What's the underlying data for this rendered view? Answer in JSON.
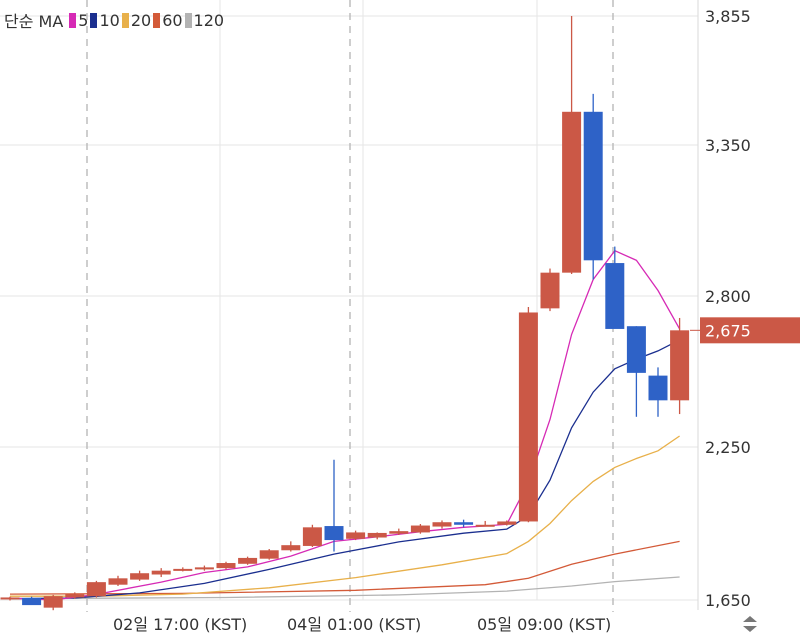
{
  "legend": {
    "label": "단순 MA",
    "items": [
      {
        "name": "5",
        "color": "#d62ab5"
      },
      {
        "name": "10",
        "color": "#1b2f8f"
      },
      {
        "name": "20",
        "color": "#e8b04a"
      },
      {
        "name": "60",
        "color": "#d35a38"
      },
      {
        "name": "120",
        "color": "#b3b3b3"
      }
    ]
  },
  "chart_data": {
    "type": "candlestick",
    "y_ticks": [
      "3,855",
      "3,350",
      "2,800",
      "2,250",
      "1,650"
    ],
    "x_ticks": [
      "02일 17:00 (KST)",
      "04일 01:00 (KST)",
      "05일 09:00 (KST)"
    ],
    "current_price_label": "2,675",
    "current_price": 2675,
    "ylim": [
      1650,
      3855
    ],
    "colors": {
      "up": "#cb5846",
      "down": "#2e62c7",
      "grid": "#e6e6e6",
      "price_tag": "#cb5846"
    },
    "candles": [
      {
        "o": 1658,
        "h": 1663,
        "l": 1648,
        "c": 1660
      },
      {
        "o": 1658,
        "h": 1663,
        "l": 1640,
        "c": 1630
      },
      {
        "o": 1620,
        "h": 1670,
        "l": 1610,
        "c": 1665
      },
      {
        "o": 1660,
        "h": 1680,
        "l": 1655,
        "c": 1672
      },
      {
        "o": 1665,
        "h": 1725,
        "l": 1660,
        "c": 1720
      },
      {
        "o": 1710,
        "h": 1745,
        "l": 1705,
        "c": 1735
      },
      {
        "o": 1730,
        "h": 1765,
        "l": 1725,
        "c": 1755
      },
      {
        "o": 1750,
        "h": 1775,
        "l": 1740,
        "c": 1765
      },
      {
        "o": 1765,
        "h": 1778,
        "l": 1762,
        "c": 1772
      },
      {
        "o": 1770,
        "h": 1785,
        "l": 1765,
        "c": 1778
      },
      {
        "o": 1775,
        "h": 1800,
        "l": 1770,
        "c": 1795
      },
      {
        "o": 1792,
        "h": 1820,
        "l": 1788,
        "c": 1815
      },
      {
        "o": 1812,
        "h": 1850,
        "l": 1808,
        "c": 1845
      },
      {
        "o": 1845,
        "h": 1880,
        "l": 1840,
        "c": 1865
      },
      {
        "o": 1862,
        "h": 1945,
        "l": 1858,
        "c": 1935
      },
      {
        "o": 1940,
        "h": 2200,
        "l": 1840,
        "c": 1885
      },
      {
        "o": 1890,
        "h": 1922,
        "l": 1885,
        "c": 1915
      },
      {
        "o": 1895,
        "h": 1915,
        "l": 1888,
        "c": 1913
      },
      {
        "o": 1910,
        "h": 1930,
        "l": 1905,
        "c": 1920
      },
      {
        "o": 1915,
        "h": 1948,
        "l": 1910,
        "c": 1942
      },
      {
        "o": 1938,
        "h": 1962,
        "l": 1930,
        "c": 1955
      },
      {
        "o": 1955,
        "h": 1965,
        "l": 1935,
        "c": 1945
      },
      {
        "o": 1945,
        "h": 1960,
        "l": 1940,
        "c": 1945
      },
      {
        "o": 1945,
        "h": 1962,
        "l": 1942,
        "c": 1958
      },
      {
        "o": 1958,
        "h": 2760,
        "l": 1955,
        "c": 2740
      },
      {
        "o": 2755,
        "h": 2900,
        "l": 2745,
        "c": 2885
      },
      {
        "o": 2885,
        "h": 3855,
        "l": 2880,
        "c": 3480
      },
      {
        "o": 3480,
        "h": 3550,
        "l": 2860,
        "c": 2930
      },
      {
        "o": 2920,
        "h": 2980,
        "l": 2700,
        "c": 2680
      },
      {
        "o": 2690,
        "h": 2690,
        "l": 2360,
        "c": 2520
      },
      {
        "o": 2510,
        "h": 2540,
        "l": 2360,
        "c": 2420
      },
      {
        "o": 2420,
        "h": 2720,
        "l": 2370,
        "c": 2675
      }
    ],
    "ma5": [
      [
        0,
        1658
      ],
      [
        2,
        1650
      ],
      [
        4,
        1672
      ],
      [
        7,
        1720
      ],
      [
        9,
        1758
      ],
      [
        11,
        1780
      ],
      [
        13,
        1822
      ],
      [
        15,
        1880
      ],
      [
        17,
        1898
      ],
      [
        19,
        1918
      ],
      [
        21,
        1935
      ],
      [
        22,
        1940
      ],
      [
        23,
        1947
      ],
      [
        24,
        2110
      ],
      [
        25,
        2350
      ],
      [
        26,
        2660
      ],
      [
        27,
        2860
      ],
      [
        28,
        2965
      ],
      [
        29,
        2930
      ],
      [
        30,
        2820
      ],
      [
        31,
        2680
      ]
    ],
    "ma10": [
      [
        0,
        1655
      ],
      [
        3,
        1658
      ],
      [
        6,
        1678
      ],
      [
        9,
        1715
      ],
      [
        12,
        1770
      ],
      [
        15,
        1830
      ],
      [
        18,
        1878
      ],
      [
        21,
        1912
      ],
      [
        23,
        1928
      ],
      [
        24,
        1980
      ],
      [
        25,
        2120
      ],
      [
        26,
        2320
      ],
      [
        27,
        2450
      ],
      [
        28,
        2535
      ],
      [
        29,
        2570
      ],
      [
        30,
        2600
      ],
      [
        31,
        2640
      ]
    ],
    "ma20": [
      [
        0,
        1665
      ],
      [
        4,
        1665
      ],
      [
        8,
        1673
      ],
      [
        12,
        1698
      ],
      [
        16,
        1738
      ],
      [
        20,
        1788
      ],
      [
        23,
        1832
      ],
      [
        24,
        1880
      ],
      [
        25,
        1950
      ],
      [
        26,
        2040
      ],
      [
        27,
        2115
      ],
      [
        28,
        2170
      ],
      [
        29,
        2205
      ],
      [
        30,
        2235
      ],
      [
        31,
        2290
      ]
    ],
    "ma60": [
      [
        0,
        1673
      ],
      [
        8,
        1676
      ],
      [
        16,
        1688
      ],
      [
        22,
        1710
      ],
      [
        24,
        1735
      ],
      [
        26,
        1790
      ],
      [
        28,
        1830
      ],
      [
        31,
        1880
      ]
    ],
    "ma120": [
      [
        0,
        1655
      ],
      [
        10,
        1660
      ],
      [
        18,
        1670
      ],
      [
        23,
        1685
      ],
      [
        26,
        1705
      ],
      [
        28,
        1722
      ],
      [
        31,
        1740
      ]
    ]
  }
}
